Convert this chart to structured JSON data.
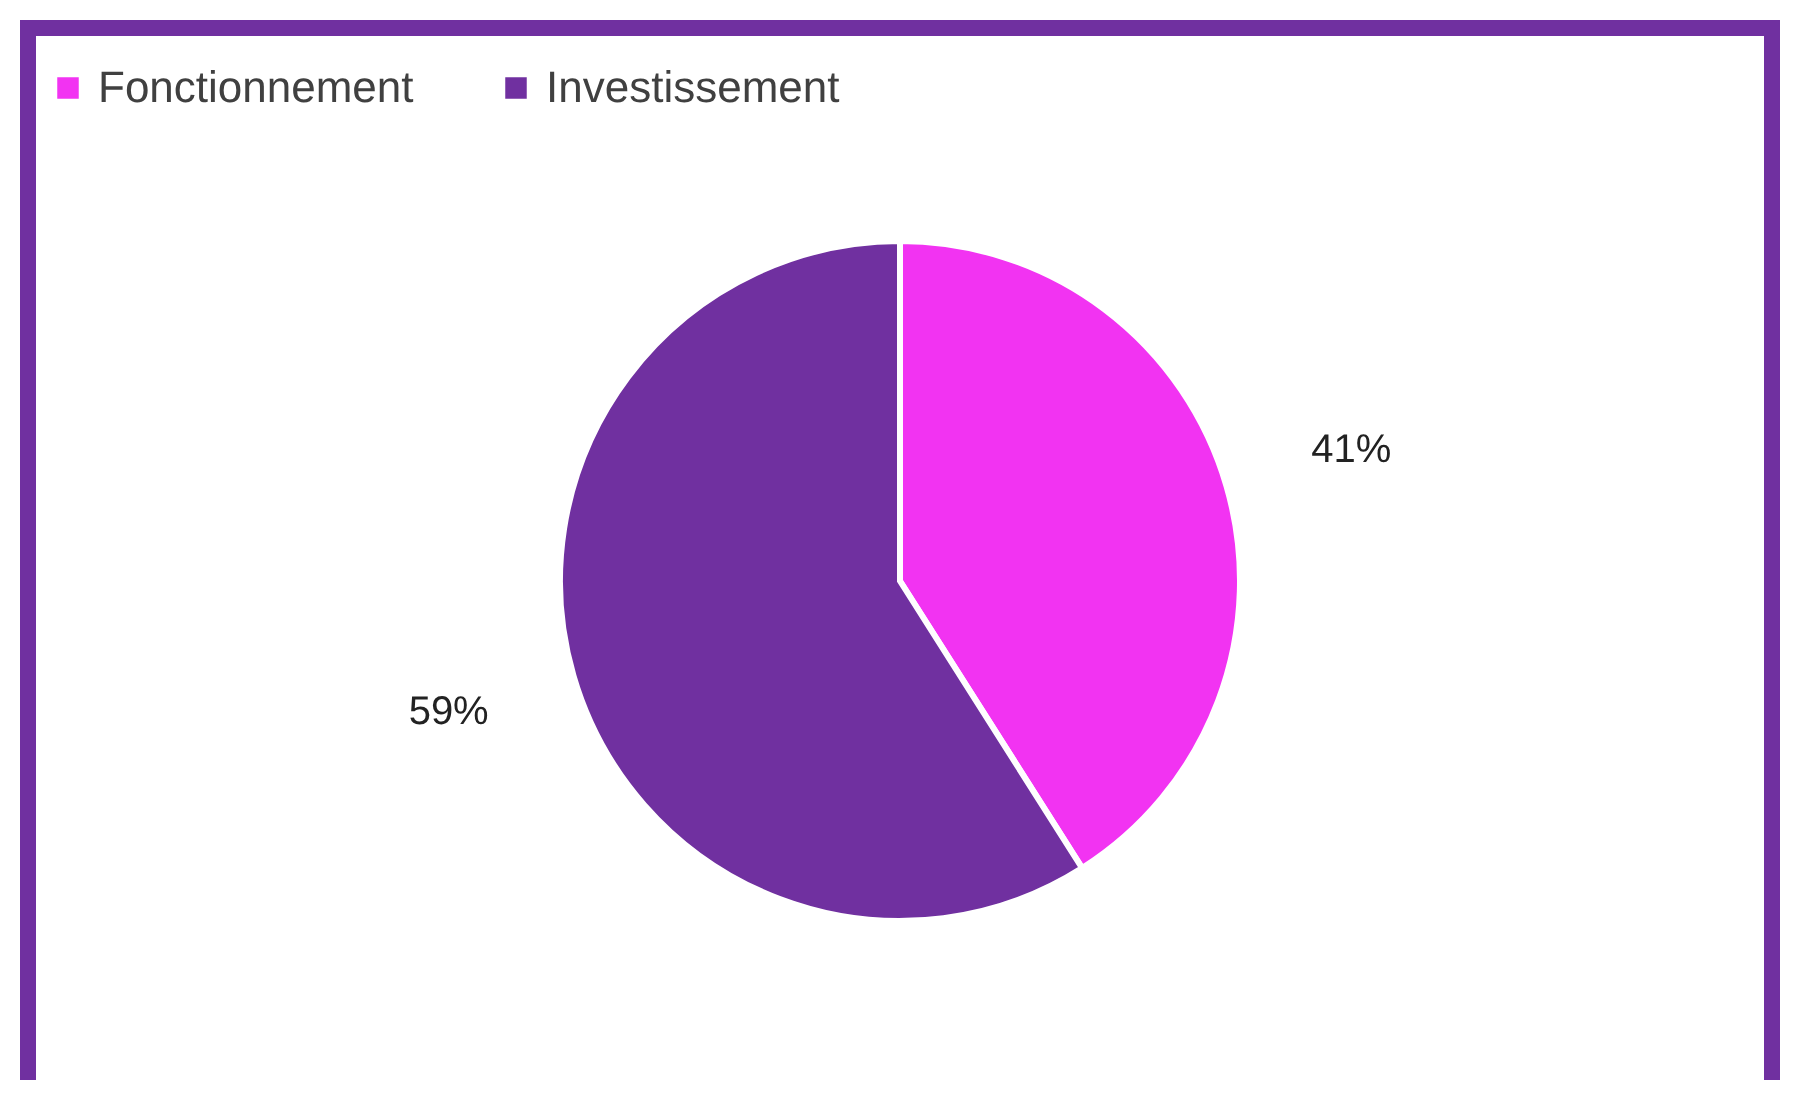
{
  "chart_data": {
    "type": "pie",
    "categories": [
      "Fonctionnement",
      "Investissement"
    ],
    "values": [
      41,
      59
    ],
    "colors": [
      "#f233f2",
      "#7030a0"
    ],
    "value_labels": [
      "41%",
      "59%"
    ],
    "legend": "top"
  }
}
